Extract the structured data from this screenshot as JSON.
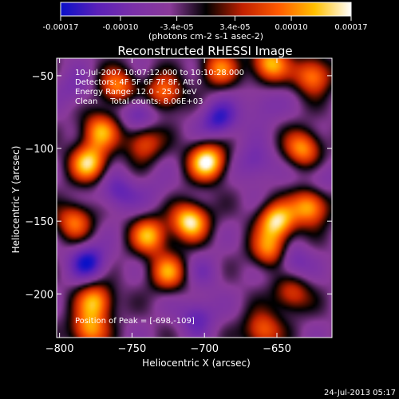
{
  "chart_data": {
    "type": "heatmap",
    "title": "Reconstructed RHESSI Image",
    "xlabel": "Heliocentric X (arcsec)",
    "ylabel": "Heliocentric Y (arcsec)",
    "xlim": [
      -802,
      -612
    ],
    "ylim": [
      -230,
      -38
    ],
    "x_ticks": [
      -800,
      -750,
      -700,
      -650
    ],
    "y_ticks": [
      -200,
      -150,
      -100,
      -50
    ],
    "colorbar": {
      "range": [
        -0.00017,
        0.00017
      ],
      "ticks": [
        "-0.00017",
        "-0.00010",
        "-3.4e-05",
        "3.4e-05",
        "0.00010",
        "0.00017"
      ],
      "unit_label": "(photons cm-2 s-1 asec-2)",
      "colors": [
        "#0a10c8",
        "#5a20b8",
        "#7a30a8",
        "#8a3a9a",
        "#000000",
        "#c02000",
        "#ff5a00",
        "#ffc000",
        "#ffffff"
      ]
    },
    "annotations": [
      "10-Jul-2007 10:07:12.000 to 10:10:28.000",
      "Detectors: 4F 5F 6F 7F 8F, Att 0",
      "Energy Range: 12.0 - 25.0 keV",
      "Clean     Total counts: 8.06E+03"
    ],
    "peak_label": "Position of Peak = [-698,-109]",
    "peak": [
      -698,
      -109
    ],
    "blobs": [
      {
        "x": -698,
        "y": -109,
        "value": 0.00017
      },
      {
        "x": -710,
        "y": -150,
        "value": 0.00016
      },
      {
        "x": -738,
        "y": -160,
        "value": 0.00012
      },
      {
        "x": -725,
        "y": -185,
        "value": 0.0001
      },
      {
        "x": -780,
        "y": -110,
        "value": 0.00014
      },
      {
        "x": -772,
        "y": -88,
        "value": 0.00011
      },
      {
        "x": -790,
        "y": -150,
        "value": 9e-05
      },
      {
        "x": -775,
        "y": -205,
        "value": 0.00012
      },
      {
        "x": -780,
        "y": -225,
        "value": 0.00011
      },
      {
        "x": -760,
        "y": -58,
        "value": 0.0001
      },
      {
        "x": -742,
        "y": -96,
        "value": 8e-05
      },
      {
        "x": -728,
        "y": -62,
        "value": 0.0001
      },
      {
        "x": -655,
        "y": -42,
        "value": 0.00013
      },
      {
        "x": -625,
        "y": -50,
        "value": 0.00011
      },
      {
        "x": -690,
        "y": -45,
        "value": 9e-05
      },
      {
        "x": -632,
        "y": -100,
        "value": 0.00011
      },
      {
        "x": -650,
        "y": -150,
        "value": 0.00015
      },
      {
        "x": -627,
        "y": -140,
        "value": 0.00013
      },
      {
        "x": -655,
        "y": -170,
        "value": 0.0001
      },
      {
        "x": -660,
        "y": -225,
        "value": 9e-05
      },
      {
        "x": -640,
        "y": -200,
        "value": 7e-05
      },
      {
        "x": -780,
        "y": -178,
        "value": -0.00016
      },
      {
        "x": -760,
        "y": -130,
        "value": -0.00012
      },
      {
        "x": -745,
        "y": -75,
        "value": -0.00013
      },
      {
        "x": -690,
        "y": -80,
        "value": -0.00015
      },
      {
        "x": -705,
        "y": -215,
        "value": -0.00012
      },
      {
        "x": -665,
        "y": -110,
        "value": -0.00011
      },
      {
        "x": -640,
        "y": -178,
        "value": -0.00012
      },
      {
        "x": -620,
        "y": -120,
        "value": -9e-05
      },
      {
        "x": -790,
        "y": -60,
        "value": -9e-05
      },
      {
        "x": -700,
        "y": -185,
        "value": -8e-05
      },
      {
        "x": -660,
        "y": -70,
        "value": -9e-05
      },
      {
        "x": -735,
        "y": -130,
        "value": -7e-05
      }
    ],
    "background_value": -4e-05
  },
  "timestamp": "24-Jul-2013 05:17"
}
